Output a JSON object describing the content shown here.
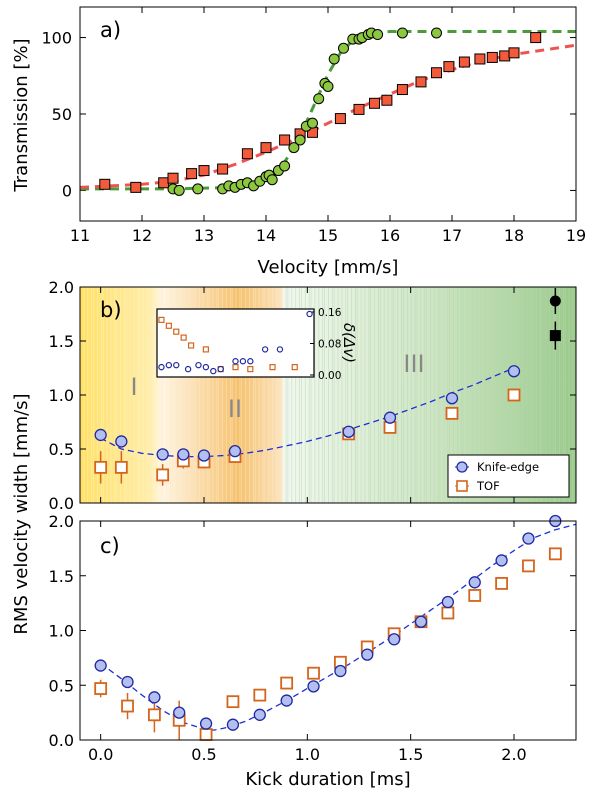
{
  "chart_data": [
    {
      "panel": "a)",
      "type": "scatter",
      "xlabel": "Velocity [mm/s]",
      "ylabel": "Transmission [%]",
      "xlim": [
        11,
        19
      ],
      "ylim": [
        -20,
        120
      ],
      "xticks": [
        11,
        12,
        13,
        14,
        15,
        16,
        17,
        18,
        19
      ],
      "yticks": [
        0,
        50,
        100
      ],
      "colors": {
        "circles": "#8dc63f",
        "circles_fit": "#4d9a3a",
        "squares": "#f15a3a",
        "squares_fit": "#ef5350"
      },
      "series": [
        {
          "marker": "circle",
          "points": [
            [
              12.5,
              1
            ],
            [
              12.6,
              0
            ],
            [
              12.9,
              1
            ],
            [
              13.3,
              1
            ],
            [
              13.4,
              3
            ],
            [
              13.5,
              2
            ],
            [
              13.6,
              4
            ],
            [
              13.7,
              5
            ],
            [
              13.8,
              3
            ],
            [
              13.9,
              6
            ],
            [
              14.0,
              9
            ],
            [
              14.05,
              10
            ],
            [
              14.1,
              7
            ],
            [
              14.2,
              13
            ],
            [
              14.3,
              16
            ],
            [
              14.45,
              28
            ],
            [
              14.55,
              33
            ],
            [
              14.65,
              42
            ],
            [
              14.75,
              44
            ],
            [
              14.85,
              60
            ],
            [
              14.95,
              70
            ],
            [
              15.0,
              68
            ],
            [
              15.1,
              86
            ],
            [
              15.25,
              93
            ],
            [
              15.4,
              99
            ],
            [
              15.5,
              99
            ],
            [
              15.55,
              100
            ],
            [
              15.65,
              102
            ],
            [
              15.7,
              103
            ],
            [
              15.8,
              102
            ],
            [
              16.2,
              103
            ],
            [
              16.75,
              103
            ]
          ]
        },
        {
          "marker": "square",
          "points": [
            [
              11.4,
              4
            ],
            [
              11.9,
              2
            ],
            [
              12.35,
              5
            ],
            [
              12.5,
              8
            ],
            [
              12.8,
              11
            ],
            [
              13.0,
              13
            ],
            [
              13.3,
              14
            ],
            [
              13.7,
              24
            ],
            [
              14.0,
              28
            ],
            [
              14.3,
              33
            ],
            [
              14.55,
              37
            ],
            [
              14.75,
              38
            ],
            [
              15.2,
              47
            ],
            [
              15.5,
              53
            ],
            [
              15.75,
              57
            ],
            [
              15.95,
              59
            ],
            [
              16.2,
              66
            ],
            [
              16.5,
              71
            ],
            [
              16.75,
              77
            ],
            [
              16.95,
              81
            ],
            [
              17.2,
              84
            ],
            [
              17.45,
              86
            ],
            [
              17.65,
              87
            ],
            [
              17.85,
              88
            ],
            [
              18.0,
              90
            ],
            [
              18.35,
              100
            ]
          ]
        }
      ],
      "fits": [
        {
          "style": "dashed",
          "points": [
            [
              11,
              1
            ],
            [
              12.5,
              1
            ],
            [
              13.5,
              2
            ],
            [
              13.9,
              5
            ],
            [
              14.2,
              12
            ],
            [
              14.4,
              25
            ],
            [
              14.6,
              40
            ],
            [
              14.8,
              58
            ],
            [
              15.0,
              76
            ],
            [
              15.2,
              90
            ],
            [
              15.4,
              98
            ],
            [
              15.6,
              102
            ],
            [
              16,
              104
            ],
            [
              17,
              104
            ],
            [
              19,
              104
            ]
          ]
        },
        {
          "style": "dashed",
          "points": [
            [
              11,
              2
            ],
            [
              12,
              4
            ],
            [
              12.5,
              6
            ],
            [
              13,
              10
            ],
            [
              13.5,
              17
            ],
            [
              14,
              25
            ],
            [
              14.5,
              34
            ],
            [
              15,
              44
            ],
            [
              15.5,
              54
            ],
            [
              16,
              63
            ],
            [
              16.5,
              72
            ],
            [
              17,
              79
            ],
            [
              17.5,
              85
            ],
            [
              18,
              89
            ],
            [
              18.5,
              92
            ],
            [
              19,
              95
            ]
          ]
        }
      ]
    },
    {
      "panel": "b)",
      "type": "scatter",
      "ylabel": "RMS velocity width [mm/s]",
      "xlim": [
        -0.1,
        2.3
      ],
      "ylim": [
        0,
        2.0
      ],
      "yticks": [
        "0.0",
        "0.5",
        "1.0",
        "1.5",
        "2.0"
      ],
      "region_labels": [
        "I",
        "II",
        "III"
      ],
      "legend": [
        "Knife-edge",
        "TOF"
      ],
      "legend_position": "lower-right",
      "colors": {
        "knife_edge_face": "#b3bff0",
        "knife_edge_edge": "#1f2a9e",
        "tof_edge": "#d4651c",
        "fit": "#1d2fd6"
      },
      "series": [
        {
          "name": "Knife-edge",
          "marker": "circle",
          "x": [
            0.0,
            0.1,
            0.3,
            0.4,
            0.5,
            0.65,
            1.2,
            1.4,
            1.7,
            2.0
          ],
          "y": [
            0.63,
            0.57,
            0.45,
            0.45,
            0.44,
            0.48,
            0.66,
            0.79,
            0.97,
            1.22
          ],
          "err": [
            0.03,
            0.03,
            0.03,
            0.03,
            0.03,
            0.03,
            0.03,
            0.03,
            0.04,
            0.05
          ]
        },
        {
          "name": "TOF",
          "marker": "square",
          "x": [
            0.0,
            0.1,
            0.3,
            0.4,
            0.5,
            0.65,
            1.2,
            1.4,
            1.7,
            2.0
          ],
          "y": [
            0.33,
            0.33,
            0.26,
            0.39,
            0.38,
            0.43,
            0.64,
            0.7,
            0.83,
            1.0
          ],
          "err": [
            0.15,
            0.15,
            0.1,
            0.07,
            0.06,
            0.06,
            0.03,
            0.03,
            0.04,
            0.04
          ]
        }
      ],
      "fit": {
        "style": "dashed",
        "points": [
          [
            0.0,
            0.6
          ],
          [
            0.1,
            0.5
          ],
          [
            0.2,
            0.46
          ],
          [
            0.3,
            0.44
          ],
          [
            0.4,
            0.43
          ],
          [
            0.5,
            0.43
          ],
          [
            0.6,
            0.44
          ],
          [
            0.7,
            0.46
          ],
          [
            0.8,
            0.49
          ],
          [
            0.9,
            0.53
          ],
          [
            1.0,
            0.57
          ],
          [
            1.1,
            0.62
          ],
          [
            1.2,
            0.68
          ],
          [
            1.3,
            0.74
          ],
          [
            1.4,
            0.8
          ],
          [
            1.5,
            0.87
          ],
          [
            1.6,
            0.94
          ],
          [
            1.7,
            1.02
          ],
          [
            1.8,
            1.09
          ],
          [
            1.9,
            1.17
          ],
          [
            2.0,
            1.25
          ]
        ]
      },
      "extra_points": [
        {
          "marker": "circle",
          "x": 2.2,
          "y": 1.87,
          "err": 0.12
        },
        {
          "marker": "square",
          "x": 2.2,
          "y": 1.55,
          "err": 0.13
        }
      ],
      "inset": {
        "ylabel": "δ(Δv)",
        "ylim": [
          0,
          0.16
        ],
        "yticks": [
          "0.00",
          "0.08",
          "0.16"
        ],
        "series": [
          {
            "marker": "circle",
            "x": [
              0.0,
              0.05,
              0.1,
              0.18,
              0.25,
              0.3,
              0.35,
              0.4,
              0.5,
              0.55,
              0.6,
              0.7,
              0.8,
              1.0
            ],
            "y": [
              0.02,
              0.025,
              0.025,
              0.015,
              0.025,
              0.02,
              0.01,
              0.015,
              0.035,
              0.035,
              0.035,
              0.065,
              0.065,
              0.155
            ]
          },
          {
            "marker": "square",
            "x": [
              0.0,
              0.05,
              0.1,
              0.15,
              0.2,
              0.3,
              0.4,
              0.5,
              0.6,
              0.75,
              0.9
            ],
            "y": [
              0.14,
              0.125,
              0.11,
              0.095,
              0.075,
              0.065,
              0.015,
              0.02,
              0.015,
              0.02,
              0.02
            ]
          }
        ]
      }
    },
    {
      "panel": "c)",
      "type": "scatter",
      "xlabel": "Kick duration [ms]",
      "xlim": [
        -0.1,
        2.3
      ],
      "ylim": [
        0,
        2.0
      ],
      "xticks": [
        "0.0",
        "0.5",
        "1.0",
        "1.5",
        "2.0"
      ],
      "yticks": [
        "0.0",
        "0.5",
        "1.0",
        "1.5",
        "2.0"
      ],
      "series": [
        {
          "marker": "circle",
          "x": [
            0.0,
            0.13,
            0.26,
            0.38,
            0.51,
            0.64,
            0.77,
            0.9,
            1.03,
            1.16,
            1.29,
            1.42,
            1.55,
            1.68,
            1.81,
            1.94,
            2.07,
            2.2
          ],
          "y": [
            0.68,
            0.53,
            0.39,
            0.25,
            0.15,
            0.14,
            0.23,
            0.36,
            0.49,
            0.63,
            0.78,
            0.92,
            1.08,
            1.26,
            1.44,
            1.64,
            1.84,
            2.0
          ],
          "err": [
            0.02,
            0.02,
            0.02,
            0.02,
            0.02,
            0.02,
            0.02,
            0.02,
            0.02,
            0.02,
            0.02,
            0.02,
            0.02,
            0.02,
            0.02,
            0.02,
            0.02,
            0.02
          ]
        },
        {
          "marker": "square",
          "x": [
            0.0,
            0.13,
            0.26,
            0.38,
            0.51,
            0.64,
            0.77,
            0.9,
            1.03,
            1.16,
            1.29,
            1.42,
            1.55,
            1.68,
            1.81,
            1.94,
            2.07,
            2.2
          ],
          "y": [
            0.47,
            0.31,
            0.23,
            0.18,
            0.05,
            0.35,
            0.41,
            0.52,
            0.61,
            0.71,
            0.85,
            0.97,
            1.08,
            1.16,
            1.32,
            1.43,
            1.59,
            1.7
          ],
          "err": [
            0.08,
            0.12,
            0.16,
            0.18,
            0.0,
            0.03,
            0.03,
            0.03,
            0.03,
            0.03,
            0.03,
            0.03,
            0.03,
            0.03,
            0.03,
            0.03,
            0.03,
            0.03
          ]
        }
      ],
      "fit": {
        "style": "dashed",
        "points": [
          [
            0.0,
            0.7
          ],
          [
            0.1,
            0.56
          ],
          [
            0.2,
            0.41
          ],
          [
            0.3,
            0.27
          ],
          [
            0.4,
            0.16
          ],
          [
            0.5,
            0.1
          ],
          [
            0.55,
            0.09
          ],
          [
            0.6,
            0.11
          ],
          [
            0.7,
            0.17
          ],
          [
            0.8,
            0.26
          ],
          [
            0.9,
            0.36
          ],
          [
            1.0,
            0.47
          ],
          [
            1.1,
            0.58
          ],
          [
            1.2,
            0.69
          ],
          [
            1.3,
            0.81
          ],
          [
            1.4,
            0.93
          ],
          [
            1.5,
            1.06
          ],
          [
            1.6,
            1.19
          ],
          [
            1.7,
            1.32
          ],
          [
            1.8,
            1.46
          ],
          [
            1.9,
            1.6
          ],
          [
            2.0,
            1.73
          ],
          [
            2.1,
            1.85
          ],
          [
            2.2,
            1.92
          ],
          [
            2.3,
            1.97
          ]
        ]
      }
    }
  ]
}
